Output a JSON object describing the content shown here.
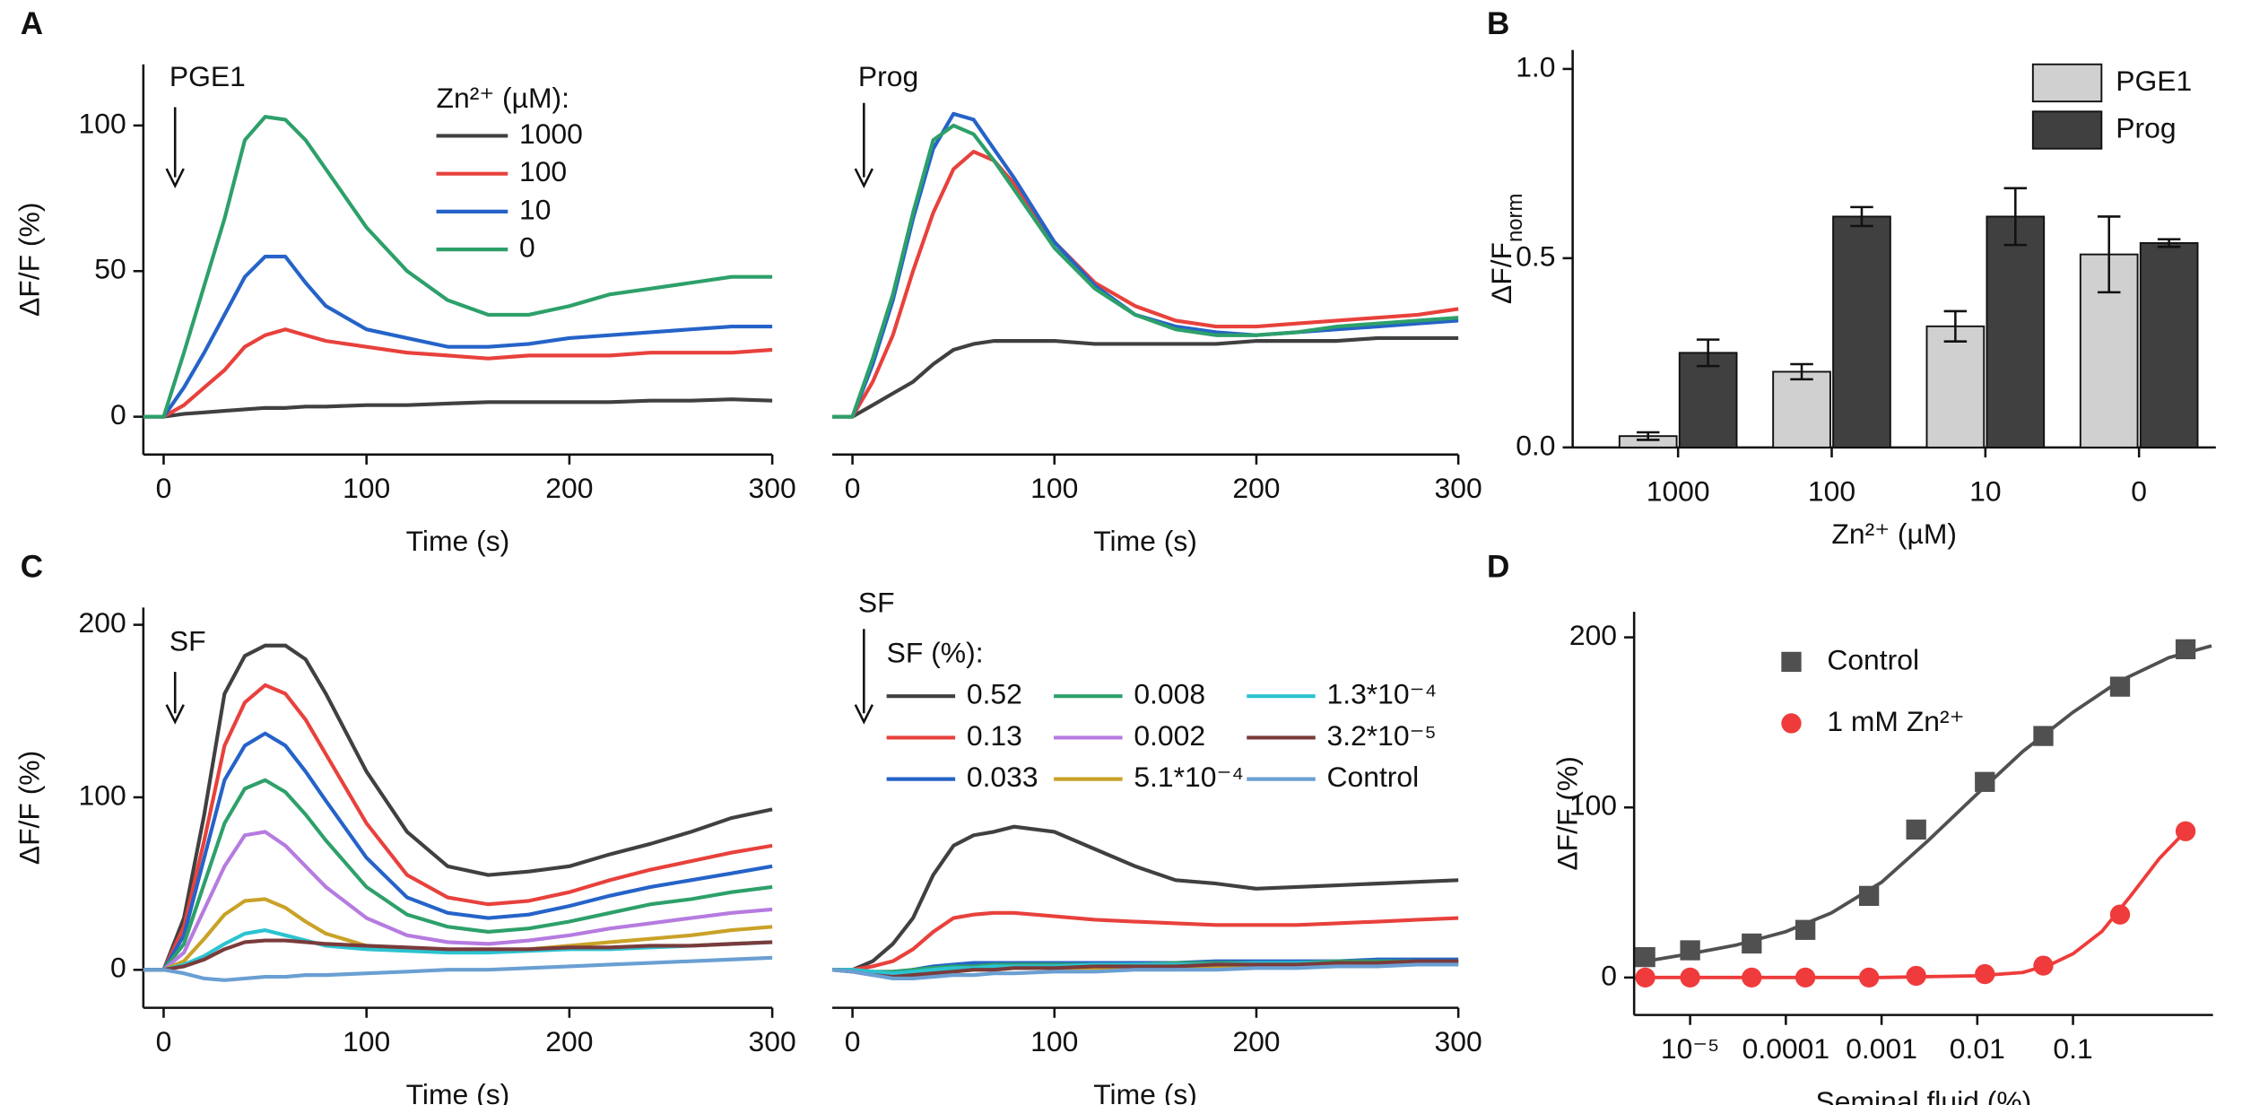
{
  "chart_data": [
    {
      "type": "line",
      "panel": "A",
      "annotation": "PGE1",
      "legend_title": "Zn²⁺ (µM):",
      "x_label": "Time (s)",
      "y_label": "ΔF/F (%)",
      "x": [
        -10,
        0,
        10,
        20,
        30,
        40,
        50,
        60,
        70,
        80,
        100,
        120,
        140,
        160,
        180,
        200,
        220,
        240,
        260,
        280,
        300
      ],
      "xlim": [
        -10,
        300
      ],
      "xticks": [
        0,
        100,
        200,
        300
      ],
      "ylim": [
        -13,
        121
      ],
      "yticks": [
        0,
        50,
        100
      ],
      "series": [
        {
          "name": "1000",
          "color": "#404040",
          "values": [
            0,
            0,
            1,
            1.5,
            2,
            2.5,
            3,
            3,
            3.5,
            3.5,
            4,
            4,
            4.5,
            5,
            5,
            5,
            5,
            5.5,
            5.5,
            6,
            5.5
          ]
        },
        {
          "name": "100",
          "color": "#e8413c",
          "values": [
            0,
            0,
            4,
            10,
            16,
            24,
            28,
            30,
            28,
            26,
            24,
            22,
            21,
            20,
            21,
            21,
            21,
            22,
            22,
            22,
            23
          ]
        },
        {
          "name": "10",
          "color": "#2563c8",
          "values": [
            0,
            0,
            10,
            22,
            35,
            48,
            55,
            55,
            46,
            38,
            30,
            27,
            24,
            24,
            25,
            27,
            28,
            29,
            30,
            31,
            31
          ]
        },
        {
          "name": "0",
          "color": "#2da06a",
          "values": [
            0,
            0,
            22,
            45,
            68,
            95,
            103,
            102,
            95,
            85,
            65,
            50,
            40,
            35,
            35,
            38,
            42,
            44,
            46,
            48,
            48
          ]
        }
      ]
    },
    {
      "type": "line",
      "annotation": "Prog",
      "x_label": "Time (s)",
      "x": [
        -10,
        0,
        10,
        20,
        30,
        40,
        50,
        60,
        70,
        80,
        100,
        120,
        140,
        160,
        180,
        200,
        220,
        240,
        260,
        280,
        300
      ],
      "xlim": [
        -10,
        300
      ],
      "xticks": [
        0,
        100,
        200,
        300
      ],
      "ylim": [
        -13,
        121
      ],
      "series": [
        {
          "color": "#404040",
          "values": [
            0,
            0,
            4,
            8,
            12,
            18,
            23,
            25,
            26,
            26,
            26,
            25,
            25,
            25,
            25,
            26,
            26,
            26,
            27,
            27,
            27
          ]
        },
        {
          "color": "#e8413c",
          "values": [
            0,
            0,
            12,
            28,
            50,
            70,
            85,
            91,
            88,
            80,
            60,
            46,
            38,
            33,
            31,
            31,
            32,
            33,
            34,
            35,
            37
          ]
        },
        {
          "color": "#2563c8",
          "values": [
            0,
            0,
            18,
            40,
            68,
            92,
            104,
            102,
            92,
            82,
            60,
            45,
            35,
            31,
            29,
            28,
            29,
            30,
            31,
            32,
            33
          ]
        },
        {
          "color": "#2da06a",
          "values": [
            0,
            0,
            20,
            42,
            70,
            95,
            100,
            97,
            88,
            78,
            58,
            44,
            35,
            30,
            28,
            28,
            29,
            31,
            32,
            33,
            34
          ]
        }
      ]
    },
    {
      "type": "bar",
      "panel": "B",
      "x_label": "Zn²⁺ (µM)",
      "y_label": "ΔF/F",
      "y_label_sub": "norm",
      "legend": "upper right",
      "categories": [
        "1000",
        "100",
        "10",
        "0"
      ],
      "ylim": [
        0,
        1.05
      ],
      "yticks": [
        {
          "value": 0,
          "label": "0.0"
        },
        0.5,
        {
          "value": 1,
          "label": "1.0"
        }
      ],
      "series": [
        {
          "name": "PGE1",
          "color": "#d0d0d0",
          "values": [
            0.03,
            0.2,
            0.32,
            0.51
          ],
          "errors": [
            0.01,
            0.02,
            0.04,
            0.1
          ]
        },
        {
          "name": "Prog",
          "color": "#404040",
          "values": [
            0.25,
            0.61,
            0.61,
            0.54
          ],
          "errors": [
            0.035,
            0.025,
            0.075,
            0.01
          ]
        }
      ]
    },
    {
      "type": "line",
      "panel": "C",
      "annotation": "SF",
      "x_label": "Time (s)",
      "y_label": "ΔF/F (%)",
      "x": [
        -10,
        0,
        10,
        20,
        30,
        40,
        50,
        60,
        70,
        80,
        100,
        120,
        140,
        160,
        180,
        200,
        220,
        240,
        260,
        280,
        300
      ],
      "xlim": [
        -10,
        300
      ],
      "xticks": [
        0,
        100,
        200,
        300
      ],
      "ylim": [
        -22,
        210
      ],
      "yticks": [
        0,
        100,
        200
      ],
      "series": [
        {
          "color": "#404040",
          "values": [
            0,
            0,
            30,
            90,
            160,
            182,
            188,
            188,
            180,
            160,
            115,
            80,
            60,
            55,
            57,
            60,
            67,
            73,
            80,
            88,
            93
          ]
        },
        {
          "color": "#e8413c",
          "values": [
            0,
            0,
            25,
            75,
            130,
            155,
            165,
            160,
            145,
            125,
            85,
            55,
            42,
            38,
            40,
            45,
            52,
            58,
            63,
            68,
            72
          ]
        },
        {
          "color": "#2563c8",
          "values": [
            0,
            0,
            20,
            65,
            110,
            130,
            137,
            130,
            115,
            98,
            65,
            42,
            33,
            30,
            32,
            37,
            43,
            48,
            52,
            56,
            60
          ]
        },
        {
          "color": "#2da06a",
          "values": [
            0,
            0,
            15,
            50,
            85,
            105,
            110,
            103,
            90,
            75,
            48,
            32,
            25,
            22,
            24,
            28,
            33,
            38,
            41,
            45,
            48
          ]
        },
        {
          "color": "#b67be0",
          "values": [
            0,
            0,
            10,
            35,
            60,
            78,
            80,
            72,
            60,
            48,
            30,
            20,
            16,
            15,
            17,
            20,
            24,
            27,
            30,
            33,
            35
          ]
        },
        {
          "color": "#c9a227",
          "values": [
            0,
            0,
            5,
            18,
            32,
            40,
            41,
            36,
            28,
            21,
            14,
            12,
            11,
            11,
            12,
            14,
            16,
            18,
            20,
            23,
            25
          ]
        },
        {
          "color": "#2bc3d1",
          "values": [
            0,
            0,
            3,
            8,
            15,
            21,
            23,
            20,
            17,
            14,
            12,
            11,
            10,
            10,
            11,
            12,
            12,
            13,
            14,
            15,
            16
          ]
        },
        {
          "color": "#7a3b3b",
          "values": [
            0,
            0,
            2,
            6,
            12,
            16,
            17,
            17,
            16,
            15,
            14,
            13,
            12,
            12,
            12,
            13,
            13,
            14,
            14,
            15,
            16
          ]
        },
        {
          "color": "#6a9fd3",
          "values": [
            0,
            0,
            -2,
            -5,
            -6,
            -5,
            -4,
            -4,
            -3,
            -3,
            -2,
            -1,
            0,
            0,
            1,
            2,
            3,
            4,
            5,
            6,
            7
          ]
        }
      ]
    },
    {
      "type": "line",
      "annotation": "SF",
      "legend_title": "SF (%):",
      "x_label": "Time (s)",
      "x": [
        -10,
        0,
        10,
        20,
        30,
        40,
        50,
        60,
        70,
        80,
        100,
        120,
        140,
        160,
        180,
        200,
        220,
        240,
        260,
        280,
        300
      ],
      "xlim": [
        -10,
        300
      ],
      "xticks": [
        0,
        100,
        200,
        300
      ],
      "ylim": [
        -22,
        210
      ],
      "series": [
        {
          "name": "0.52",
          "color": "#404040",
          "values": [
            0,
            0,
            5,
            15,
            30,
            55,
            72,
            78,
            80,
            83,
            80,
            70,
            60,
            52,
            50,
            47,
            48,
            49,
            50,
            51,
            52
          ]
        },
        {
          "name": "0.13",
          "color": "#e8413c",
          "values": [
            0,
            0,
            2,
            5,
            12,
            22,
            30,
            32,
            33,
            33,
            31,
            29,
            28,
            27,
            26,
            26,
            26,
            27,
            28,
            29,
            30
          ]
        },
        {
          "name": "0.033",
          "color": "#2563c8",
          "values": [
            0,
            -1,
            -1,
            -2,
            0,
            2,
            3,
            4,
            4,
            4,
            4,
            4,
            4,
            4,
            5,
            5,
            5,
            5,
            6,
            6,
            6
          ]
        },
        {
          "name": "0.008",
          "color": "#2da06a",
          "values": [
            0,
            0,
            -1,
            -1,
            0,
            1,
            2,
            2,
            3,
            3,
            3,
            3,
            3,
            4,
            4,
            4,
            4,
            5,
            5,
            5,
            5
          ]
        },
        {
          "name": "0.002",
          "color": "#b67be0",
          "values": [
            0,
            -1,
            -2,
            -3,
            -2,
            -1,
            0,
            1,
            1,
            2,
            2,
            2,
            3,
            3,
            3,
            3,
            4,
            4,
            4,
            4,
            4
          ]
        },
        {
          "name": "5.1*10⁻⁴",
          "color": "#c9a227",
          "values": [
            0,
            -1,
            -2,
            -3,
            -3,
            -2,
            -1,
            0,
            0,
            1,
            1,
            1,
            2,
            2,
            2,
            2,
            3,
            3,
            3,
            3,
            3
          ]
        },
        {
          "name": "1.3*10⁻⁴",
          "color": "#2bc3d1",
          "values": [
            0,
            0,
            -1,
            -2,
            -1,
            0,
            1,
            1,
            2,
            2,
            2,
            3,
            3,
            3,
            3,
            4,
            4,
            4,
            4,
            4,
            4
          ]
        },
        {
          "name": "3.2*10⁻⁵",
          "color": "#7a3b3b",
          "values": [
            0,
            -1,
            -3,
            -4,
            -3,
            -2,
            -1,
            0,
            0,
            1,
            1,
            2,
            2,
            2,
            3,
            3,
            3,
            4,
            4,
            5,
            5
          ]
        },
        {
          "name": "Control",
          "color": "#6a9fd3",
          "values": [
            0,
            -1,
            -3,
            -5,
            -5,
            -4,
            -3,
            -3,
            -2,
            -2,
            -1,
            -1,
            0,
            0,
            0,
            1,
            1,
            2,
            2,
            3,
            3
          ]
        }
      ]
    },
    {
      "type": "scatter",
      "panel": "D",
      "x_label": "Seminal fluid (%)",
      "y_label": "ΔF/F (%)",
      "log_x": true,
      "xlim": [
        2.6e-06,
        2.9
      ],
      "xticks": [
        {
          "value": 1e-05,
          "label": "10⁻⁵"
        },
        0.0001,
        0.001,
        0.01,
        0.1
      ],
      "ylim": [
        -22,
        215
      ],
      "yticks": [
        0,
        100,
        200
      ],
      "series": [
        {
          "name": "Control",
          "color": "#505050",
          "marker": "square",
          "x": [
            3.4e-06,
            1e-05,
            4.4e-05,
            0.00016,
            0.00074,
            0.0023,
            0.012,
            0.049,
            0.31,
            1.5
          ],
          "values": [
            12,
            16,
            20,
            28,
            48,
            87,
            115,
            142,
            171,
            193
          ],
          "fit_x": [
            3e-06,
            1e-05,
            3e-05,
            0.0001,
            0.0003,
            0.001,
            0.003,
            0.01,
            0.03,
            0.1,
            0.3,
            1,
            2.8
          ],
          "fit_values": [
            9,
            14,
            19,
            27,
            38,
            56,
            80,
            108,
            133,
            156,
            174,
            188,
            195
          ]
        },
        {
          "name": "1 mM Zn²⁺",
          "color": "#ef3b3b",
          "marker": "circle",
          "x": [
            3.4e-06,
            1e-05,
            4.4e-05,
            0.00016,
            0.00074,
            0.0023,
            0.012,
            0.049,
            0.31,
            1.5
          ],
          "values": [
            0,
            0,
            0,
            0,
            0,
            1,
            2,
            7,
            37,
            86
          ],
          "fit_x": [
            3e-06,
            0.0001,
            0.001,
            0.01,
            0.03,
            0.06,
            0.1,
            0.2,
            0.4,
            0.8,
            1.5
          ],
          "fit_values": [
            0,
            0,
            0,
            1,
            3,
            8,
            14,
            27,
            48,
            70,
            86
          ]
        }
      ]
    }
  ]
}
